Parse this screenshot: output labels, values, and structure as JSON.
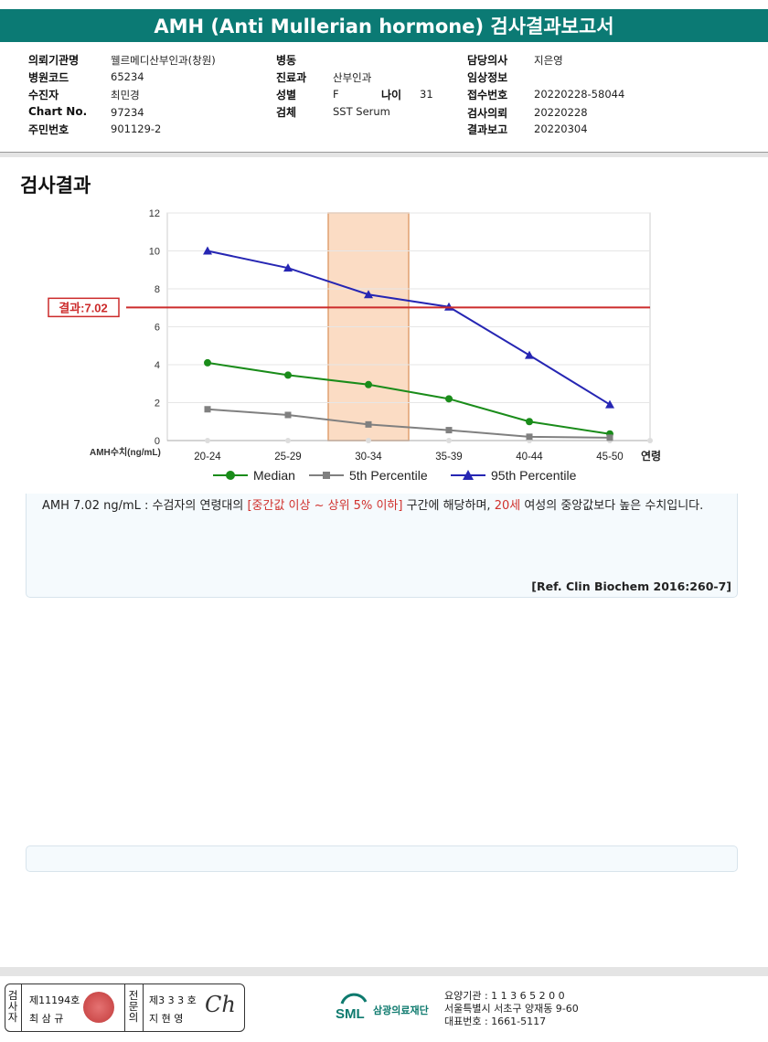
{
  "header": {
    "title": "AMH (Anti Mullerian hormone) 검사결과보고서"
  },
  "info": {
    "col1": [
      {
        "label": "의뢰기관명",
        "value": "웰르메디산부인과(창원)"
      },
      {
        "label": "병원코드",
        "value": "65234"
      },
      {
        "label": "수진자",
        "value": "최민경"
      },
      {
        "label": "Chart No.",
        "value": "97234"
      },
      {
        "label": "주민번호",
        "value": "901129-2"
      }
    ],
    "col2": [
      {
        "label": "병동",
        "value": ""
      },
      {
        "label": "진료과",
        "value": "산부인과"
      },
      {
        "label": "성별",
        "value": "F"
      },
      {
        "label": "검체",
        "value": "SST Serum"
      }
    ],
    "age": {
      "label": "나이",
      "value": "31"
    },
    "col3": [
      {
        "label": "담당의사",
        "value": "지은영"
      },
      {
        "label": "임상정보",
        "value": ""
      },
      {
        "label": "접수번호",
        "value": "20220228-58044"
      },
      {
        "label": "검사의뢰",
        "value": "20220228"
      },
      {
        "label": "결과보고",
        "value": "20220304"
      }
    ]
  },
  "section_title": "검사결과",
  "chart_data": {
    "type": "line",
    "categories": [
      "20-24",
      "25-29",
      "30-34",
      "35-39",
      "40-44",
      "45-50"
    ],
    "ylabel": "AMH수치(ng/mL)",
    "xlabel": "연령",
    "ylim": [
      0,
      12
    ],
    "yticks": [
      0,
      2,
      4,
      6,
      8,
      10,
      12
    ],
    "highlight_category": "30-34",
    "result": {
      "label": "결과:7.02",
      "value": 7.02,
      "color": "#cc2b2b"
    },
    "series": [
      {
        "name": "Median",
        "values": [
          4.1,
          3.45,
          2.95,
          2.2,
          1.0,
          0.35
        ],
        "color": "#1a8c1a",
        "marker": "circle"
      },
      {
        "name": "5th Percentile",
        "values": [
          1.65,
          1.35,
          0.85,
          0.55,
          0.2,
          0.15
        ],
        "color": "#808080",
        "marker": "square"
      },
      {
        "name": "95th Percentile",
        "values": [
          10.0,
          9.1,
          7.7,
          7.05,
          4.5,
          1.9
        ],
        "color": "#2626b3",
        "marker": "triangle"
      }
    ],
    "legend_position": "bottom",
    "grid": true
  },
  "note": {
    "prefix": "AMH  7.02 ng/mL : 수검자의 연령대의 ",
    "range": "[중간값 이상 ~ 상위 5% 이하]",
    "middle": " 구간에 해당하며, ",
    "age": "20세",
    "suffix": " 여성의 중앙값보다 높은 수치입니다."
  },
  "reference": "[Ref. Clin Biochem 2016:260-7]",
  "footer": {
    "tester_label": [
      "검",
      "사",
      "자"
    ],
    "tester_no": "제11194호",
    "tester_name": "최 삼 규",
    "specialist_label": [
      "전",
      "문",
      "의"
    ],
    "specialist_no": "제3 3 3 호",
    "specialist_name": "지 현 영",
    "signature": "Ch",
    "org_name": "삼광의료재단",
    "org_logo": "SML",
    "addr1": "요양기관 : 1 1 3 6 5 2 0 0",
    "addr2": "서울특별시 서초구 양재동 9-60",
    "addr3": "대표번호 : 1661-5117"
  }
}
